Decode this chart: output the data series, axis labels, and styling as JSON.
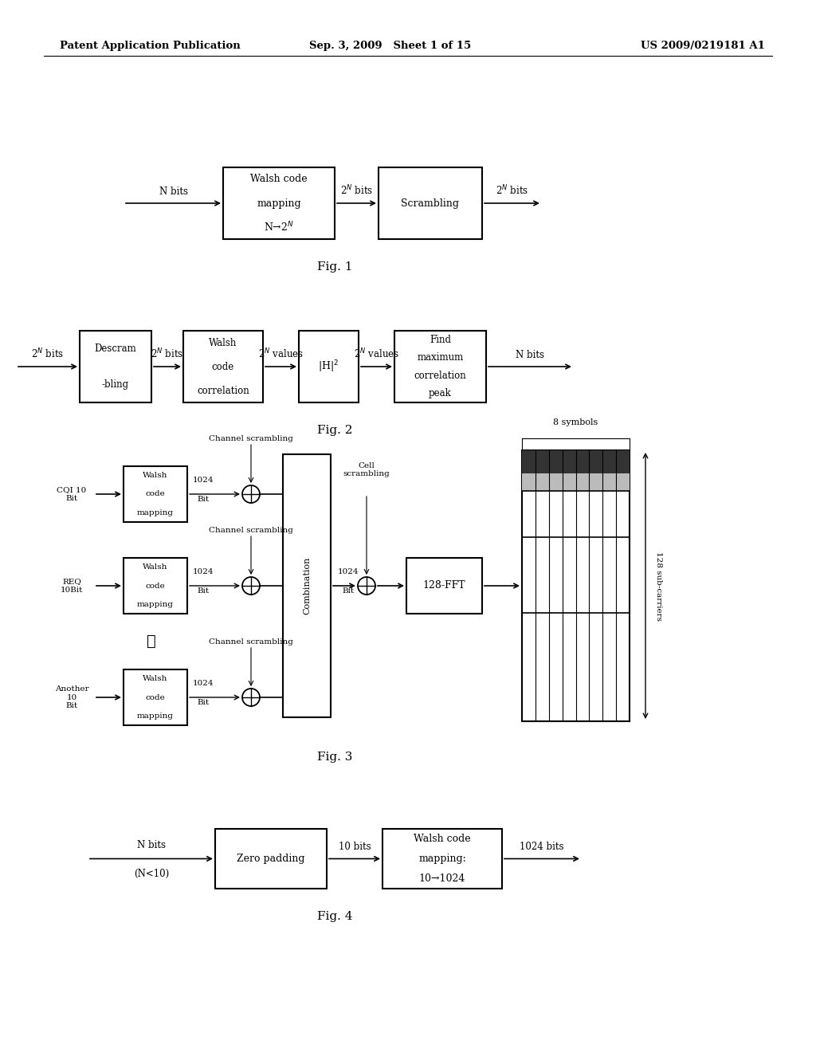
{
  "bg_color": "#ffffff",
  "header_left": "Patent Application Publication",
  "header_mid": "Sep. 3, 2009   Sheet 1 of 15",
  "header_right": "US 2009/0219181 A1"
}
